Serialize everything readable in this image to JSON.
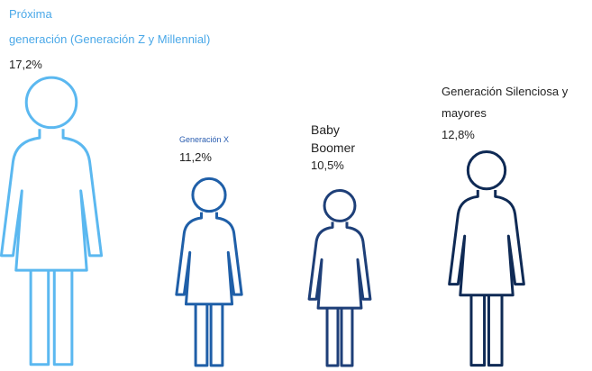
{
  "chart_data": {
    "type": "pictogram",
    "categories": [
      "Próxima\ngeneración (Generación Z y Millennial)",
      "Generación X",
      "Baby\nBoomer",
      "Generación Silenciosa y\nmayores"
    ],
    "values": [
      17.2,
      11.2,
      10.5,
      12.8
    ],
    "value_labels": [
      "17,2%",
      "11,2%",
      "10,5%",
      "12,8%"
    ],
    "colors": [
      "#5bb8f0",
      "#1f5fa8",
      "#1e3f78",
      "#0f2a55"
    ]
  }
}
